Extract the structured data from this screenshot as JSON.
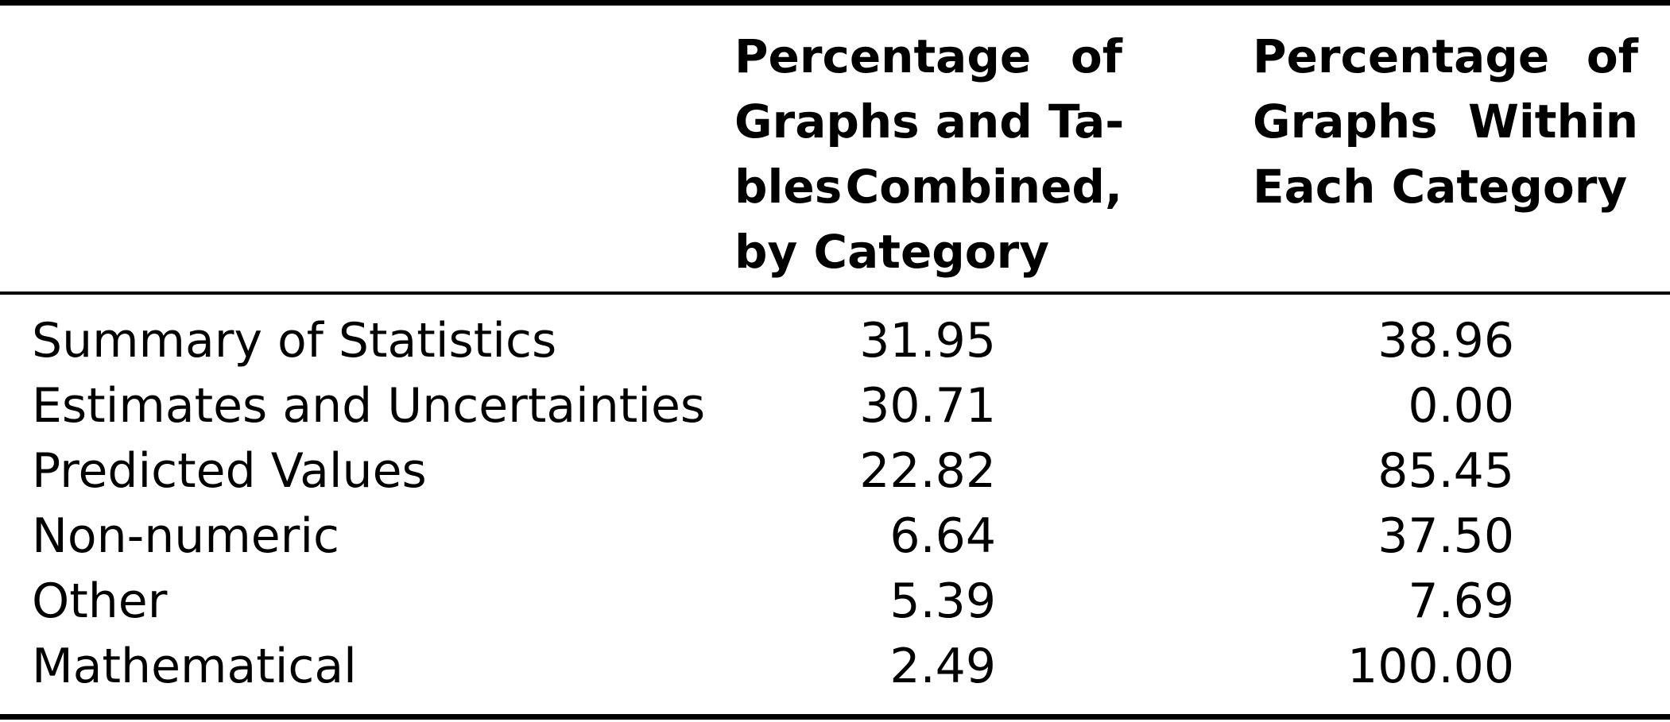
{
  "table": {
    "headers": {
      "col1": [
        [
          "Percentage",
          "of"
        ],
        [
          "Graphs and Ta-"
        ],
        [
          "bles",
          "Combined,"
        ],
        [
          "by Category"
        ]
      ],
      "col2": [
        [
          "Percentage",
          "of"
        ],
        [
          "Graphs",
          "Within"
        ],
        [
          "Each Category"
        ]
      ]
    },
    "rows": [
      {
        "category": "Summary of Statistics",
        "combined": "31.95",
        "within": "38.96"
      },
      {
        "category": "Estimates and Uncertainties",
        "combined": "30.71",
        "within": "0.00"
      },
      {
        "category": "Predicted Values",
        "combined": "22.82",
        "within": "85.45"
      },
      {
        "category": "Non-numeric",
        "combined": "6.64",
        "within": "37.50"
      },
      {
        "category": "Other",
        "combined": "5.39",
        "within": "7.69"
      },
      {
        "category": "Mathematical",
        "combined": "2.49",
        "within": "100.00"
      }
    ]
  }
}
